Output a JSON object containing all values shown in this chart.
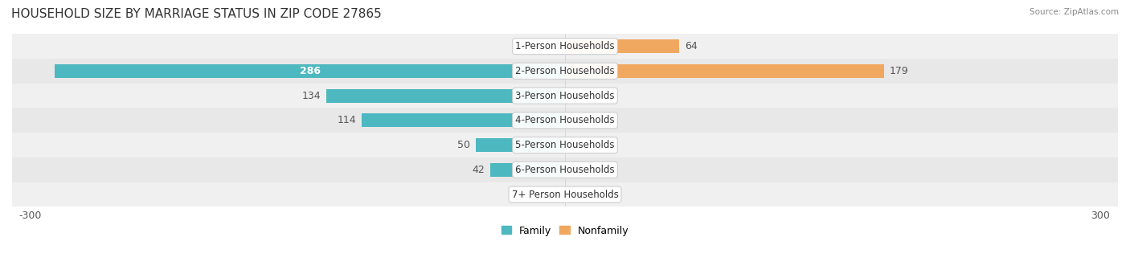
{
  "title": "HOUSEHOLD SIZE BY MARRIAGE STATUS IN ZIP CODE 27865",
  "source": "Source: ZipAtlas.com",
  "categories": [
    "7+ Person Households",
    "6-Person Households",
    "5-Person Households",
    "4-Person Households",
    "3-Person Households",
    "2-Person Households",
    "1-Person Households"
  ],
  "family_values": [
    0,
    42,
    50,
    114,
    134,
    286,
    0
  ],
  "nonfamily_values": [
    0,
    0,
    0,
    0,
    0,
    179,
    64
  ],
  "family_color": "#4DB8C0",
  "nonfamily_color": "#F0A860",
  "row_bg_colors": [
    "#F0F0F0",
    "#E8E8E8"
  ],
  "title_fontsize": 11,
  "label_fontsize": 9,
  "tick_fontsize": 9
}
